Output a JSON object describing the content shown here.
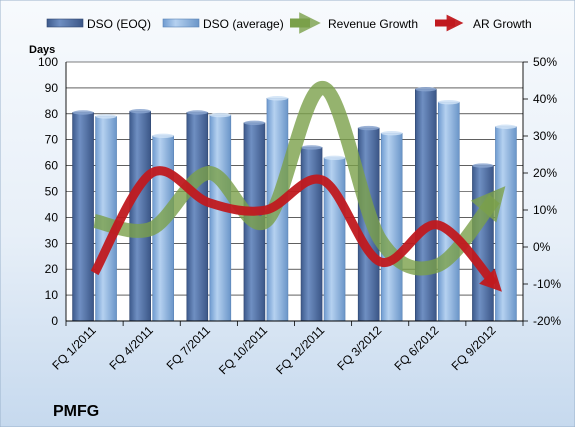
{
  "chart_data": {
    "type": "bar",
    "title": "",
    "company_label": "PMFG",
    "ylabel": "Days",
    "ylim": [
      0,
      100
    ],
    "yticks": [
      "0",
      "10",
      "20",
      "30",
      "40",
      "50",
      "60",
      "70",
      "80",
      "90",
      "100"
    ],
    "y2lim": [
      -0.2,
      0.5
    ],
    "y2ticks": [
      "-20%",
      "-10%",
      "0%",
      "10%",
      "20%",
      "30%",
      "40%",
      "50%"
    ],
    "categories": [
      "FQ 1/2011",
      "FQ 4/2011",
      "FQ 7/2011",
      "FQ 10/2011",
      "FQ 12/2011",
      "FQ 3/2012",
      "FQ 6/2012",
      "FQ 9/2012"
    ],
    "series": [
      {
        "name": "DSO (EOQ)",
        "kind": "bar",
        "axis": "left",
        "color": "#4f6b9b",
        "values": [
          80.5,
          81,
          80.5,
          76.5,
          67,
          74.5,
          89.5,
          60
        ]
      },
      {
        "name": "DSO (average)",
        "kind": "bar",
        "axis": "left",
        "color": "#7fa7d6",
        "values": [
          79,
          71.5,
          79.5,
          86,
          63,
          72.5,
          84.5,
          75
        ]
      },
      {
        "name": "Revenue Growth",
        "kind": "line",
        "axis": "right",
        "color": "#7aa04a",
        "values": [
          0.07,
          0.05,
          0.2,
          0.07,
          0.43,
          0.02,
          -0.05,
          0.13
        ]
      },
      {
        "name": "AR Growth",
        "kind": "line",
        "axis": "right",
        "color": "#c0191f",
        "values": [
          -0.07,
          0.2,
          0.12,
          0.1,
          0.18,
          -0.04,
          0.06,
          -0.1
        ]
      }
    ],
    "grid": true,
    "legend_position": "top",
    "colors": {
      "plot_background": "#ffffff",
      "page_background": "#d4e3f1",
      "grid": "#000000"
    }
  }
}
